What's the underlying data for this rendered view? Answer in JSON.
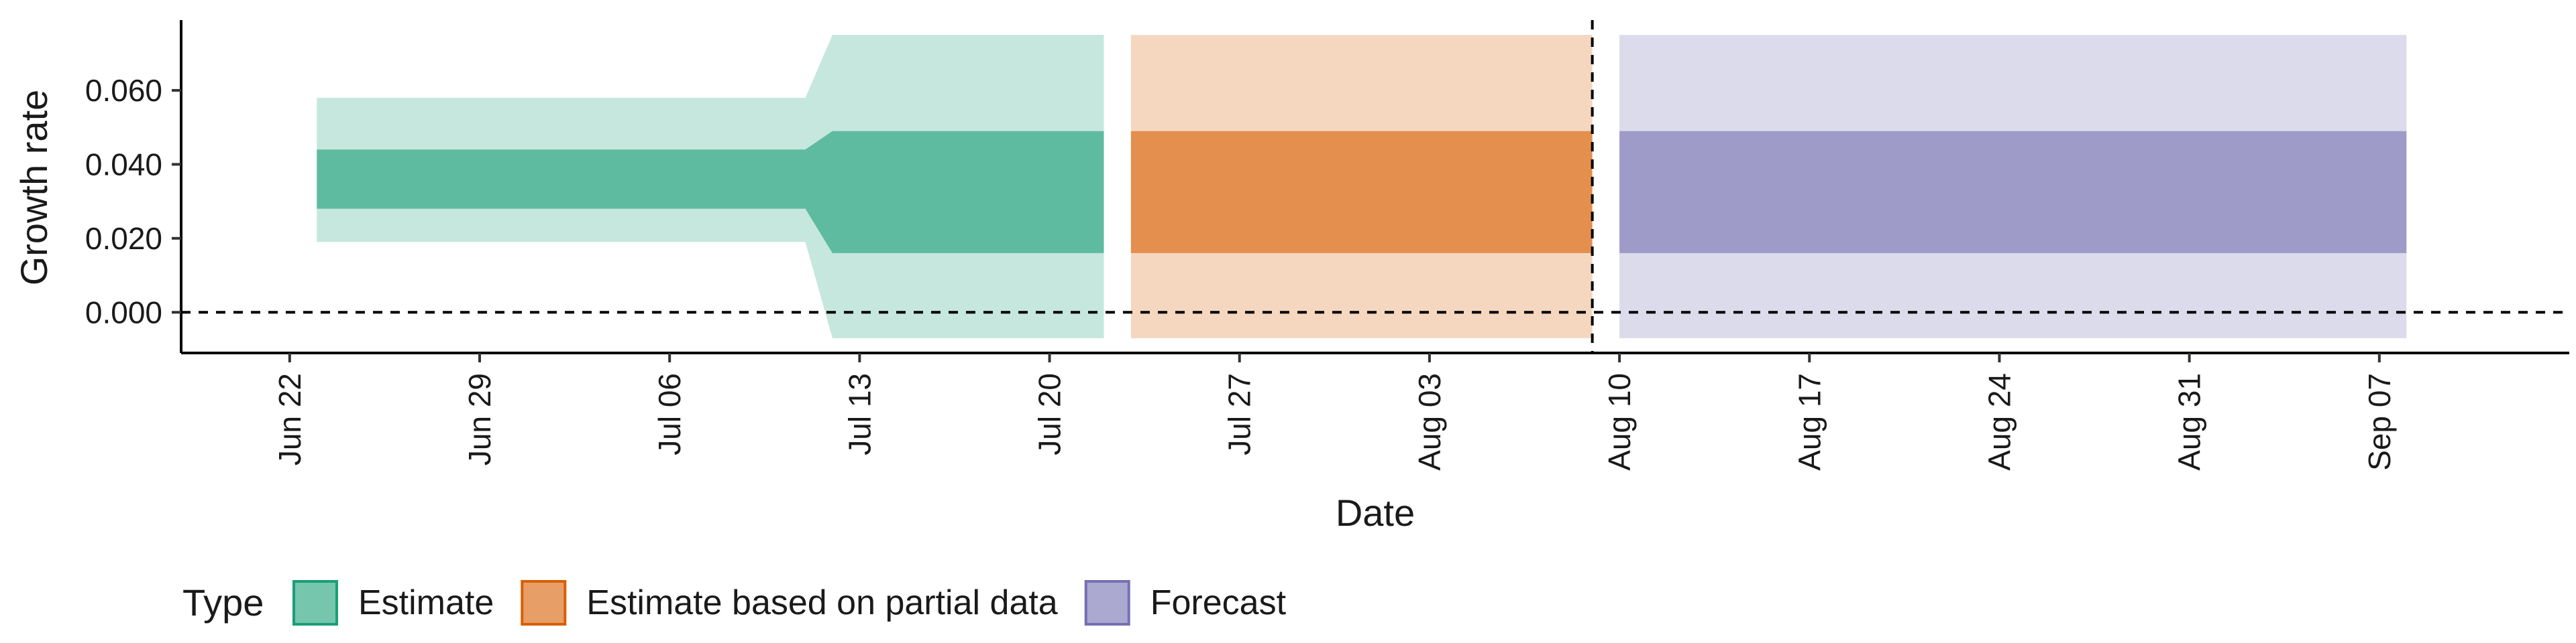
{
  "chart_data": {
    "type": "area",
    "xlabel": "Date",
    "ylabel": "Growth rate",
    "x_range": [
      "2024-06-18",
      "2024-09-14"
    ],
    "ylim": [
      -0.011,
      0.079
    ],
    "y_ticks": [
      "0.000",
      "0.020",
      "0.040",
      "0.060"
    ],
    "x_ticks": [
      {
        "date": "2024-06-22",
        "label": "Jun 22"
      },
      {
        "date": "2024-06-29",
        "label": "Jun 29"
      },
      {
        "date": "2024-07-06",
        "label": "Jul 06"
      },
      {
        "date": "2024-07-13",
        "label": "Jul 13"
      },
      {
        "date": "2024-07-20",
        "label": "Jul 20"
      },
      {
        "date": "2024-07-27",
        "label": "Jul 27"
      },
      {
        "date": "2024-08-03",
        "label": "Aug 03"
      },
      {
        "date": "2024-08-10",
        "label": "Aug 10"
      },
      {
        "date": "2024-08-17",
        "label": "Aug 17"
      },
      {
        "date": "2024-08-24",
        "label": "Aug 24"
      },
      {
        "date": "2024-08-31",
        "label": "Aug 31"
      },
      {
        "date": "2024-09-07",
        "label": "Sep 07"
      }
    ],
    "hline_y": 0.0,
    "vline_x": "2024-08-09",
    "legend_title": "Type",
    "legend_position": "bottom",
    "series": [
      {
        "name": "Estimate",
        "fill": "#1b9e77",
        "line": "#1b9e77",
        "points": [
          {
            "x": "2024-06-23",
            "outer_lo": 0.019,
            "inner_lo": 0.028,
            "inner_hi": 0.044,
            "outer_hi": 0.058
          },
          {
            "x": "2024-07-11",
            "outer_lo": 0.019,
            "inner_lo": 0.028,
            "inner_hi": 0.044,
            "outer_hi": 0.058
          },
          {
            "x": "2024-07-12",
            "outer_lo": -0.007,
            "inner_lo": 0.016,
            "inner_hi": 0.049,
            "outer_hi": 0.075
          },
          {
            "x": "2024-07-22",
            "outer_lo": -0.007,
            "inner_lo": 0.016,
            "inner_hi": 0.049,
            "outer_hi": 0.075
          }
        ]
      },
      {
        "name": "Estimate based on partial data",
        "fill": "#d95f02",
        "line": "#d95f02",
        "points": [
          {
            "x": "2024-07-23",
            "outer_lo": -0.007,
            "inner_lo": 0.016,
            "inner_hi": 0.049,
            "outer_hi": 0.075
          },
          {
            "x": "2024-08-09",
            "outer_lo": -0.007,
            "inner_lo": 0.016,
            "inner_hi": 0.049,
            "outer_hi": 0.075
          }
        ]
      },
      {
        "name": "Forecast",
        "fill": "#7570b3",
        "line": "#7570b3",
        "points": [
          {
            "x": "2024-08-10",
            "outer_lo": -0.007,
            "inner_lo": 0.016,
            "inner_hi": 0.049,
            "outer_hi": 0.075
          },
          {
            "x": "2024-09-08",
            "outer_lo": -0.007,
            "inner_lo": 0.016,
            "inner_hi": 0.049,
            "outer_hi": 0.075
          }
        ]
      }
    ]
  }
}
